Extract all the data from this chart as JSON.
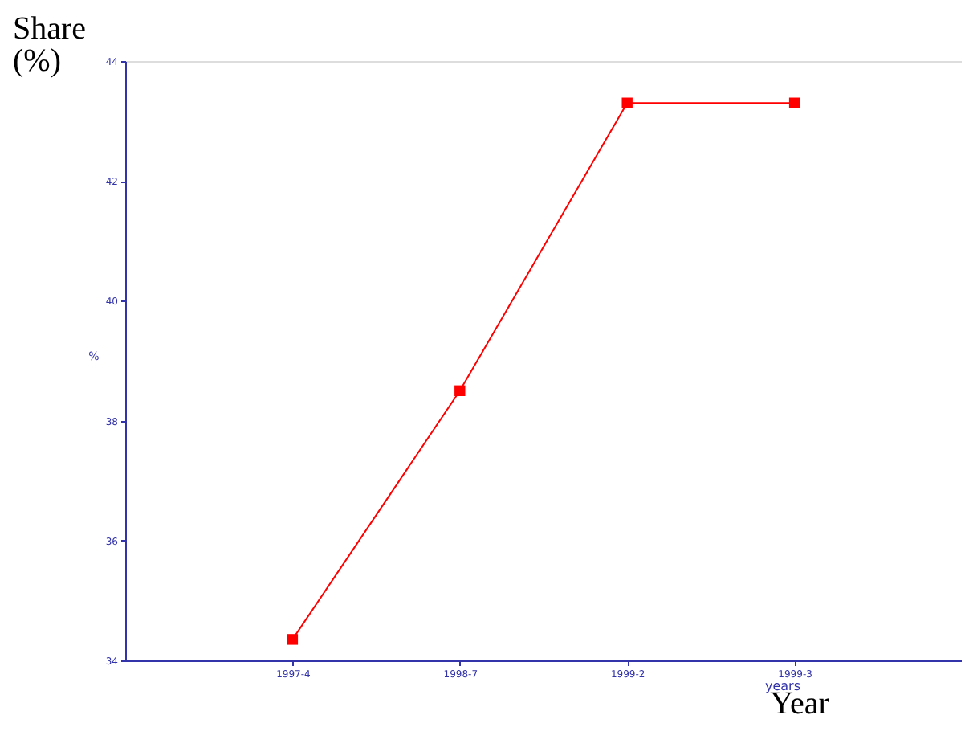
{
  "chart_data": {
    "type": "line",
    "xlabel": "years",
    "ylabel": "%",
    "annotations": [
      "Share (%)",
      "Year"
    ],
    "categories": [
      "1997-4",
      "1998-7",
      "1999-2",
      "1999-3"
    ],
    "series": [
      {
        "color": "#ff0000",
        "values": [
          34.35,
          38.5,
          43.3,
          43.3
        ]
      }
    ],
    "ylim": [
      34,
      44
    ],
    "yticks": [
      34,
      36,
      38,
      40,
      42,
      44
    ],
    "grid": false,
    "legend": false,
    "marker": "square",
    "line_style": "solid"
  }
}
